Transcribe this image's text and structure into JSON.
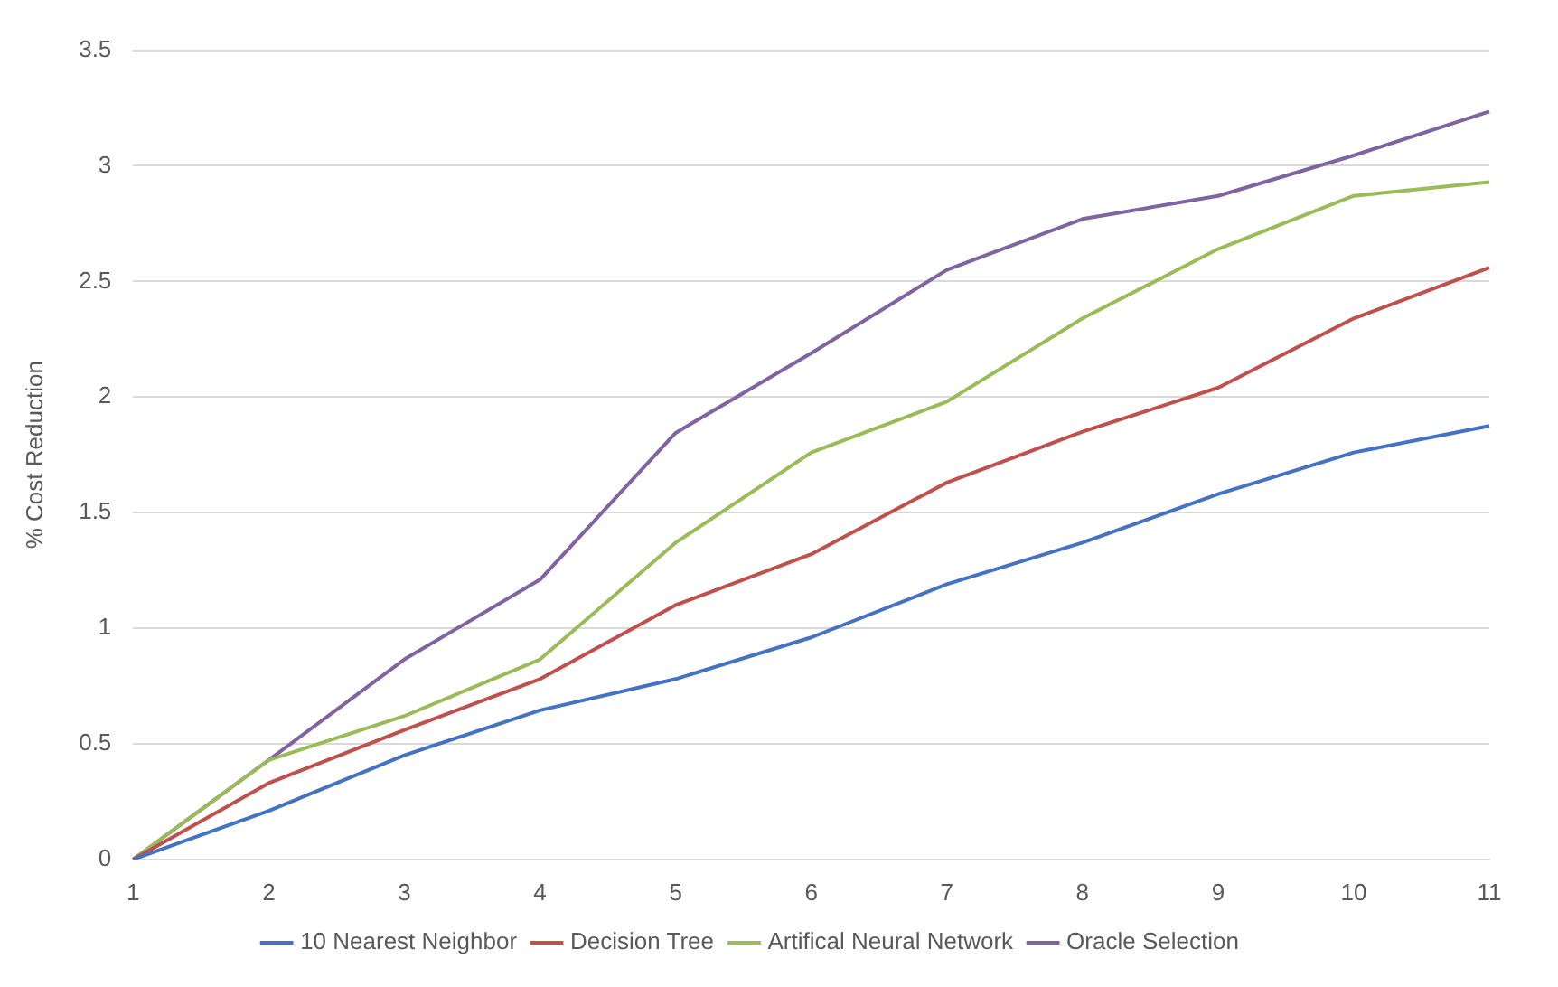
{
  "chart_data": {
    "type": "line",
    "ylabel": "% Cost Reduction",
    "categories": [
      "1",
      "2",
      "3",
      "4",
      "5",
      "6",
      "7",
      "8",
      "9",
      "10",
      "11"
    ],
    "series": [
      {
        "name": "10 Nearest Neighbor",
        "color": "#4472c4",
        "values": [
          0,
          0.21,
          0.45,
          0.645,
          0.78,
          0.96,
          1.19,
          1.37,
          1.58,
          1.76,
          1.875
        ]
      },
      {
        "name": "Decision Tree",
        "color": "#c0504d",
        "values": [
          0,
          0.33,
          0.56,
          0.78,
          1.1,
          1.32,
          1.63,
          1.85,
          2.04,
          2.34,
          2.56
        ]
      },
      {
        "name": "Artifical Neural Network",
        "color": "#9bbb59",
        "values": [
          0,
          0.43,
          0.62,
          0.865,
          1.37,
          1.76,
          1.98,
          2.34,
          2.64,
          2.87,
          2.93
        ]
      },
      {
        "name": "Oracle Selection",
        "color": "#8064a2",
        "values": [
          0,
          0.43,
          0.865,
          1.21,
          1.845,
          2.19,
          2.55,
          2.77,
          2.87,
          3.045,
          3.235
        ]
      }
    ],
    "ylim": [
      0,
      3.5
    ],
    "yticks": [
      0,
      0.5,
      1,
      1.5,
      2,
      2.5,
      3,
      3.5
    ],
    "grid": "y",
    "legend": "bottom",
    "marker": "none",
    "line_style": "solid"
  }
}
